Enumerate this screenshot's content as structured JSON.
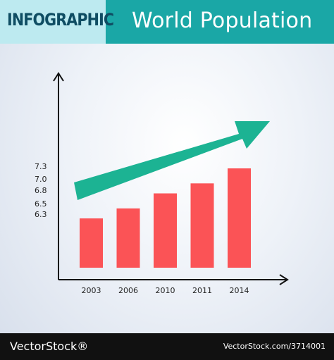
{
  "header": {
    "tag": "INFOGRAPHIC",
    "title": "World Population"
  },
  "footer": {
    "brand": "VectorStock®",
    "image_id": "VectorStock.com/3714001"
  },
  "colors": {
    "header_bg": "#1aa7a6",
    "tag_bg": "#bdeaf0",
    "bar": "#fb5356",
    "arrow": "#1cb393",
    "axis": "#111111"
  },
  "chart_data": {
    "type": "bar",
    "title": "World Population",
    "categories": [
      "2003",
      "2006",
      "2010",
      "2011",
      "2014"
    ],
    "values": [
      6.3,
      6.5,
      6.8,
      7.0,
      7.3
    ],
    "y_tick_labels": [
      "6.3",
      "6.5",
      "6.8",
      "7.0",
      "7.3"
    ],
    "xlabel": "",
    "ylabel": "",
    "grid": false,
    "trend_arrow": "up-right"
  }
}
